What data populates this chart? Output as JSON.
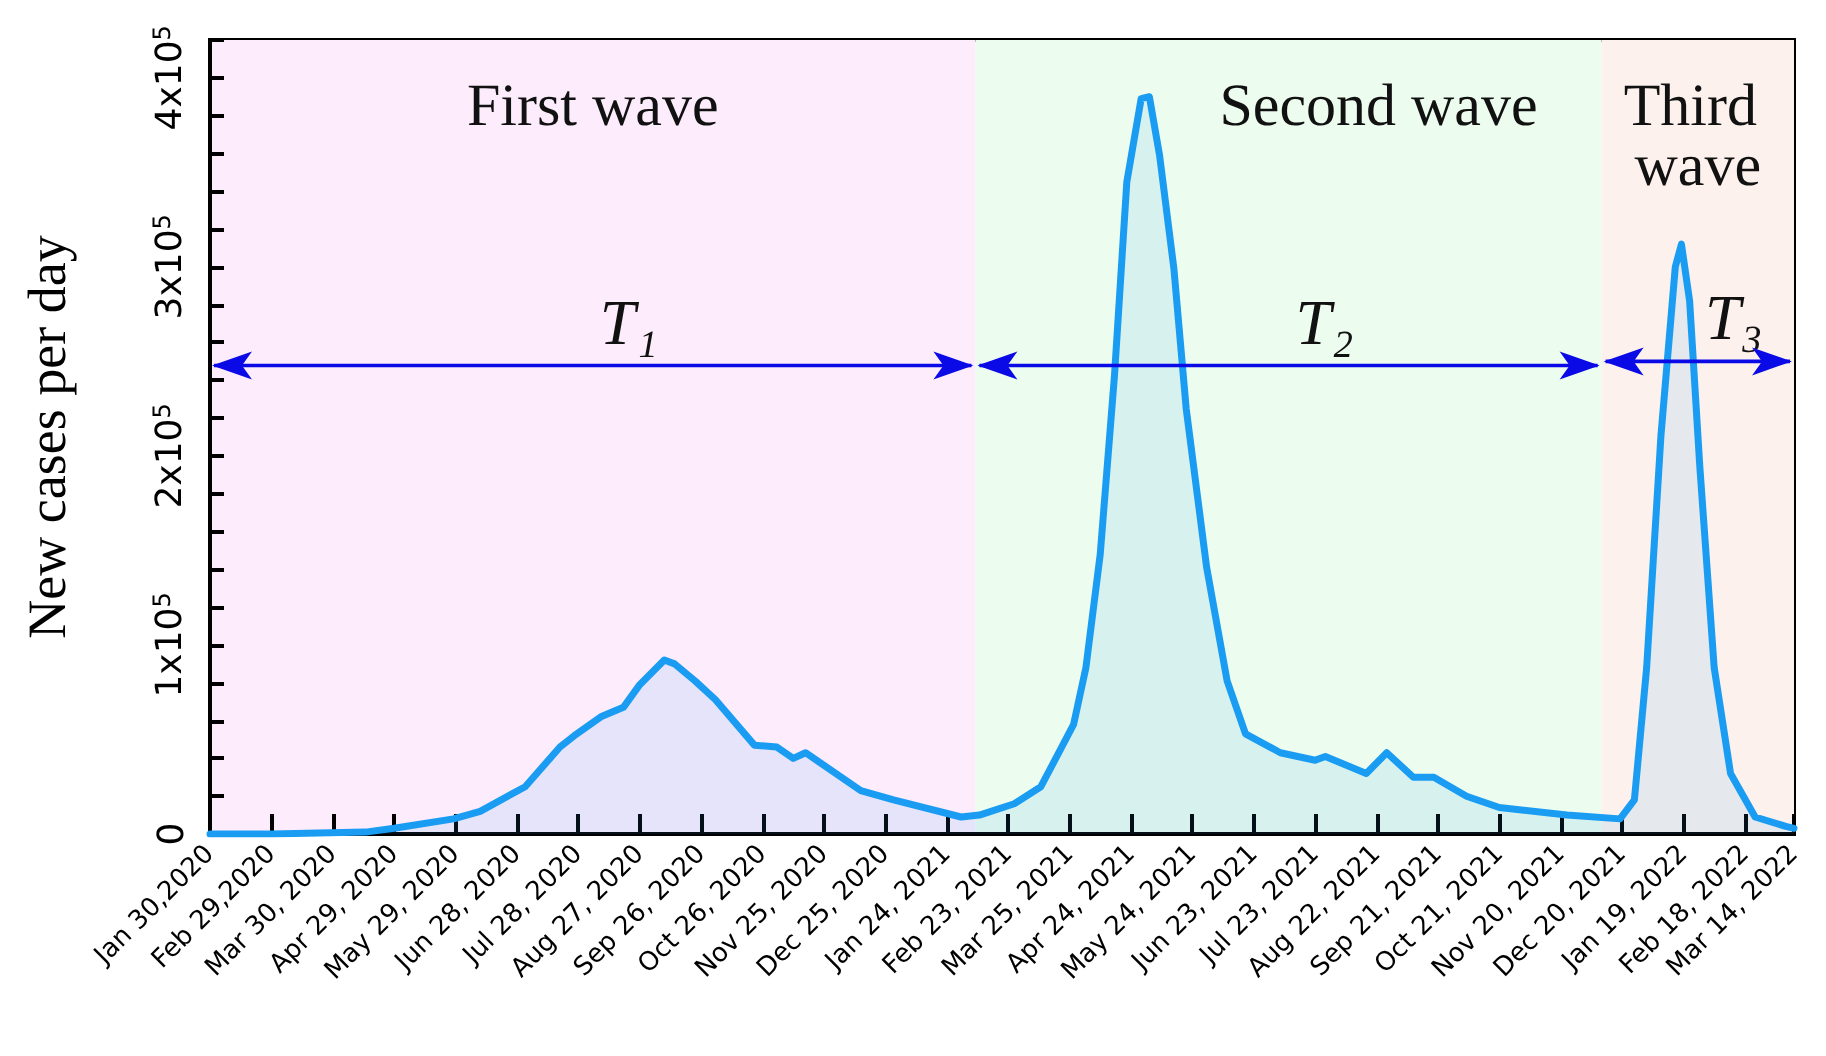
{
  "chart_data": {
    "type": "area",
    "ylabel": "New cases per day",
    "x": [
      "2020-01-30",
      "2020-02-29",
      "2020-04-15",
      "2020-04-29",
      "2020-05-28",
      "2020-06-10",
      "2020-07-02",
      "2020-07-19",
      "2020-07-26",
      "2020-08-08",
      "2020-08-19",
      "2020-08-27",
      "2020-09-08",
      "2020-09-13",
      "2020-09-23",
      "2020-10-03",
      "2020-10-22",
      "2020-11-02",
      "2020-11-10",
      "2020-11-16",
      "2020-12-13",
      "2020-12-29",
      "2021-01-31",
      "2021-02-09",
      "2021-02-26",
      "2021-03-11",
      "2021-03-27",
      "2021-04-02",
      "2021-04-09",
      "2021-04-16",
      "2021-04-22",
      "2021-04-29",
      "2021-05-03",
      "2021-05-08",
      "2021-05-15",
      "2021-05-21",
      "2021-05-31",
      "2021-06-10",
      "2021-06-19",
      "2021-07-06",
      "2021-07-23",
      "2021-07-28",
      "2021-08-17",
      "2021-08-27",
      "2021-09-09",
      "2021-09-19",
      "2021-10-05",
      "2021-10-21",
      "2021-11-23",
      "2021-12-19",
      "2021-12-26",
      "2022-01-01",
      "2022-01-08",
      "2022-01-15",
      "2022-01-18",
      "2022-01-22",
      "2022-01-27",
      "2022-02-03",
      "2022-02-11",
      "2022-02-23",
      "2022-03-10",
      "2022-03-14"
    ],
    "series": [
      {
        "color": "#1a9cf2",
        "values": [
          0,
          0,
          1000,
          3000,
          8000,
          12000,
          25000,
          46000,
          52000,
          62000,
          67000,
          79000,
          92000,
          90000,
          81000,
          71000,
          47000,
          46000,
          40000,
          43000,
          23000,
          18000,
          9000,
          10000,
          16000,
          25000,
          58000,
          88000,
          148000,
          243000,
          345000,
          389000,
          390000,
          359000,
          299000,
          225000,
          141000,
          81000,
          53000,
          43000,
          39000,
          41000,
          32000,
          43000,
          30000,
          30000,
          20000,
          14000,
          10000,
          8000,
          18000,
          88000,
          211000,
          300000,
          312000,
          282000,
          194000,
          88000,
          32000,
          9000,
          4000,
          3000
        ]
      }
    ],
    "xlim": [
      "2020-01-30",
      "2022-03-14"
    ],
    "xticks": [
      {
        "value": "2020-01-30",
        "label": "Jan 30,2020"
      },
      {
        "value": "2020-02-29",
        "label": "Feb 29,2020"
      },
      {
        "value": "2020-03-30",
        "label": "Mar 30, 2020"
      },
      {
        "value": "2020-04-29",
        "label": "Apr 29, 2020"
      },
      {
        "value": "2020-05-29",
        "label": "May 29, 2020"
      },
      {
        "value": "2020-06-28",
        "label": "Jun 28, 2020"
      },
      {
        "value": "2020-07-28",
        "label": "Jul 28, 2020"
      },
      {
        "value": "2020-08-27",
        "label": "Aug 27, 2020"
      },
      {
        "value": "2020-09-26",
        "label": "Sep 26, 2020"
      },
      {
        "value": "2020-10-26",
        "label": "Oct 26, 2020"
      },
      {
        "value": "2020-11-25",
        "label": "Nov 25, 2020"
      },
      {
        "value": "2020-12-25",
        "label": "Dec 25, 2020"
      },
      {
        "value": "2021-01-24",
        "label": "Jan 24, 2021"
      },
      {
        "value": "2021-02-23",
        "label": "Feb 23, 2021"
      },
      {
        "value": "2021-03-25",
        "label": "Mar 25, 2021"
      },
      {
        "value": "2021-04-24",
        "label": "Apr 24, 2021"
      },
      {
        "value": "2021-05-24",
        "label": "May 24, 2021"
      },
      {
        "value": "2021-06-23",
        "label": "Jun 23, 2021"
      },
      {
        "value": "2021-07-23",
        "label": "Jul 23, 2021"
      },
      {
        "value": "2021-08-22",
        "label": "Aug 22, 2021"
      },
      {
        "value": "2021-09-21",
        "label": "Sep 21, 2021"
      },
      {
        "value": "2021-10-21",
        "label": "Oct 21, 2021"
      },
      {
        "value": "2021-11-20",
        "label": "Nov 20, 2021"
      },
      {
        "value": "2021-12-20",
        "label": "Dec 20, 2021"
      },
      {
        "value": "2022-01-19",
        "label": "Jan 19, 2022"
      },
      {
        "value": "2022-02-18",
        "label": "Feb 18, 2022"
      },
      {
        "value": "2022-03-14",
        "label": "Mar 14, 2022"
      }
    ],
    "ylim": [
      0,
      420000
    ],
    "yticks": [
      0,
      {
        "value": 20000,
        "label": null
      },
      {
        "value": 40000,
        "label": null
      },
      {
        "value": 60000,
        "label": null
      },
      {
        "value": 80000,
        "label": null
      },
      {
        "value": 100000,
        "label": "1x10$^{5}$"
      },
      {
        "value": 120000,
        "label": null
      },
      {
        "value": 140000,
        "label": null
      },
      {
        "value": 160000,
        "label": null
      },
      {
        "value": 180000,
        "label": null
      },
      {
        "value": 200000,
        "label": "2x10$^{5}$"
      },
      {
        "value": 220000,
        "label": null
      },
      {
        "value": 240000,
        "label": null
      },
      {
        "value": 260000,
        "label": null
      },
      {
        "value": 280000,
        "label": null
      },
      {
        "value": 300000,
        "label": "3x10$^{5}$"
      },
      {
        "value": 320000,
        "label": null
      },
      {
        "value": 340000,
        "label": null
      },
      {
        "value": 360000,
        "label": null
      },
      {
        "value": 380000,
        "label": null
      },
      {
        "value": 400000,
        "label": "4x10$^{5}$"
      },
      {
        "value": 420000,
        "label": null
      }
    ],
    "bands": [
      {
        "axis": "x",
        "from": "2020-01-30",
        "to": "2021-02-07",
        "label": "First wave",
        "color": "#fcecfc"
      },
      {
        "axis": "x",
        "from": "2021-02-07",
        "to": "2021-12-10",
        "label": "Second wave",
        "color": "#ecfcee"
      },
      {
        "axis": "x",
        "from": "2021-12-10",
        "to": "2022-03-14",
        "label": "Third wave",
        "color": "#fcf1ec"
      }
    ],
    "annotations": [
      "T₁",
      "T₂",
      {
        "text": "T₃",
        "x": "2022-03-14",
        "y": 250000
      }
    ]
  }
}
